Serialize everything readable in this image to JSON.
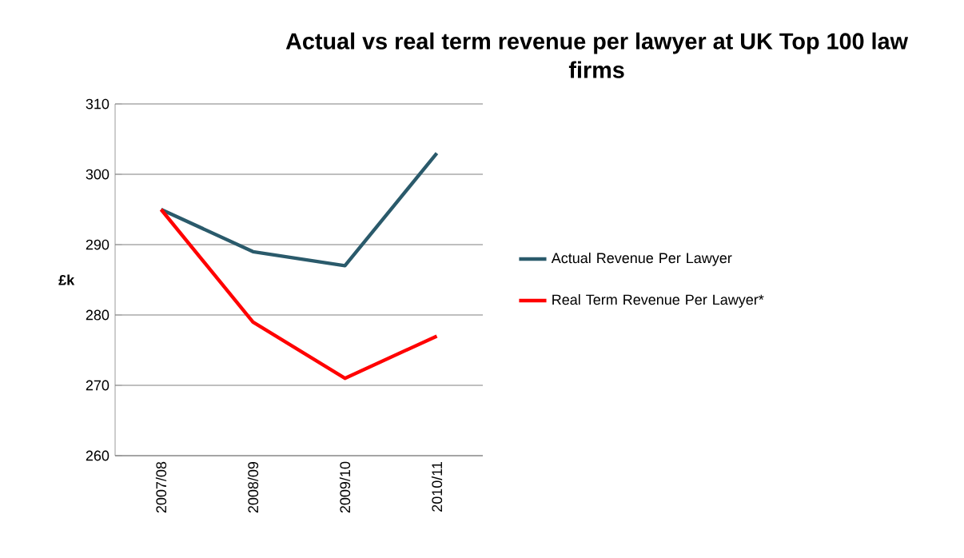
{
  "chart_data": {
    "type": "line",
    "title": "Actual vs real term revenue per lawyer at UK Top 100 law firms",
    "ylabel": "£k",
    "categories": [
      "2007/08",
      "2008/09",
      "2009/10",
      "2010/11"
    ],
    "series": [
      {
        "name": "Actual Revenue Per Lawyer",
        "color": "#2a5a6b",
        "values": [
          295,
          289,
          287,
          303
        ]
      },
      {
        "name": "Real Term Revenue Per Lawyer*",
        "color": "#ff0000",
        "values": [
          295,
          279,
          271,
          277
        ]
      }
    ],
    "ylim": [
      260,
      310
    ],
    "yticks": [
      260,
      270,
      280,
      290,
      300,
      310
    ],
    "grid": "y",
    "legend": "right",
    "marker": "none",
    "line_style": "solid"
  }
}
